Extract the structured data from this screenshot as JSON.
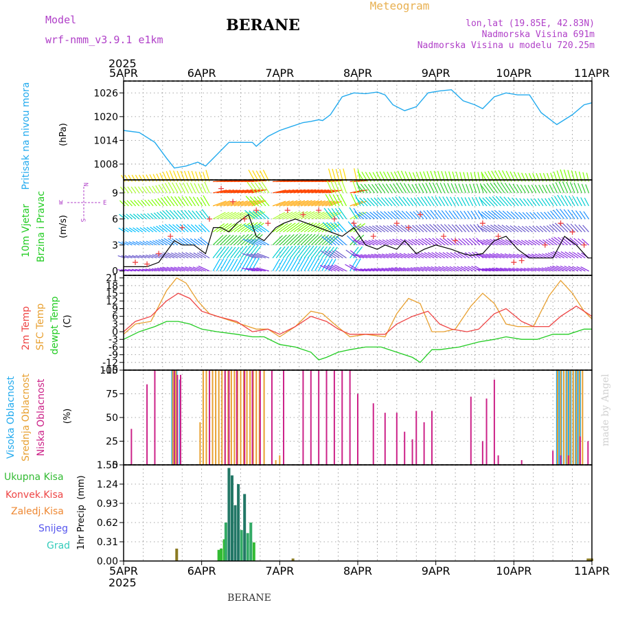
{
  "header": {
    "model_label": "Model",
    "model_name": "wrf-nmm_v3.9.1 e1km",
    "station": "BERANE",
    "product": "Meteogram",
    "coords": "lon,lat (19.85E, 42.83N)",
    "elevation": "Nadmorska Visina 691m",
    "model_elevation": "Nadmorska Visina u modelu 720.25m",
    "year_top": "2025",
    "year_bottom": "2025",
    "footer_station": "BERANE",
    "credit": "made by Angel"
  },
  "colors": {
    "pressure": "#22aaee",
    "temp2m": "#ee4444",
    "sfc_temp": "#e8a030",
    "dewpt": "#22cc22",
    "wind_speed": "#000000",
    "gust_marker": "#ee4444",
    "high_cloud": "#22aaee",
    "mid_cloud": "#e8a030",
    "low_cloud": "#cc2288",
    "total_precip": "#33bb33",
    "conv_precip": "#ee4444",
    "freezing_precip": "#ee8833",
    "snow": "#5555ee",
    "graupel": "#33ccbb",
    "label_purple": "#b040c8"
  },
  "x_axis": {
    "ticks": [
      "5APR",
      "6APR",
      "7APR",
      "8APR",
      "9APR",
      "10APR",
      "11APR"
    ]
  },
  "panels": {
    "pressure": {
      "ylabel": "Pritisak na nivou mora",
      "unit": "(hPa)"
    },
    "wind": {
      "ylabel_1": "10m Vjetar",
      "ylabel_2": "Brzina i Pravac",
      "unit": "(m/s)",
      "compass": {
        "n": "N",
        "s": "S",
        "w": "W",
        "e": "E"
      }
    },
    "temperature": {
      "label_2m": "2m Temp",
      "label_sfc": "SFC Temp",
      "label_dew": "dewpt Temp",
      "unit": "(C)"
    },
    "clouds": {
      "label_high": "Visoka Oblacnost",
      "label_mid": "Srednja Oblacnost",
      "label_low": "Niska Oblacnost",
      "unit": "(%)"
    },
    "precip": {
      "ylabel": "1hr Precip",
      "unit": "(mm)",
      "legend": [
        "Ukupna Kisa",
        "Konvek.Kisa",
        "Zaledj.Kisa",
        "Snijeg",
        "Grad"
      ]
    }
  },
  "chart_data": [
    {
      "type": "line",
      "name": "pressure",
      "x_unit": "days since 5APR 00UTC",
      "ylim": [
        1004,
        1029
      ],
      "yticks": [
        1008,
        1014,
        1020,
        1026
      ],
      "grid": true,
      "series": [
        {
          "name": "Pritisak na nivou mora",
          "x": [
            0,
            0.2,
            0.4,
            0.55,
            0.65,
            0.8,
            0.95,
            1.05,
            1.2,
            1.35,
            1.5,
            1.65,
            1.7,
            1.85,
            2.0,
            2.15,
            2.3,
            2.4,
            2.5,
            2.55,
            2.65,
            2.8,
            2.95,
            3.1,
            3.25,
            3.35,
            3.45,
            3.6,
            3.75,
            3.9,
            4.05,
            4.2,
            4.35,
            4.5,
            4.6,
            4.75,
            4.9,
            5.05,
            5.2,
            5.35,
            5.55,
            5.75,
            5.9,
            6.0
          ],
          "y": [
            1016.5,
            1016,
            1013.5,
            1009.5,
            1007,
            1007.5,
            1008.5,
            1007.5,
            1010.5,
            1013.5,
            1013.5,
            1013.5,
            1012.5,
            1015,
            1016.5,
            1017.5,
            1018.5,
            1018.8,
            1019.2,
            1019,
            1020.5,
            1025,
            1026,
            1025.8,
            1026.2,
            1025.5,
            1023,
            1021.5,
            1022.5,
            1026,
            1026.5,
            1026.8,
            1024,
            1023,
            1022,
            1025,
            1026,
            1025.5,
            1025.5,
            1021,
            1018,
            1020.5,
            1023,
            1023.5
          ]
        }
      ]
    },
    {
      "type": "line",
      "name": "wind",
      "x_unit": "days since 5APR 00UTC",
      "ylim": [
        -0.5,
        10.5
      ],
      "yticks": [
        0,
        3,
        6,
        9
      ],
      "grid": true,
      "series": [
        {
          "name": "speed",
          "x": [
            0,
            0.3,
            0.45,
            0.65,
            0.75,
            0.9,
            1.05,
            1.15,
            1.25,
            1.35,
            1.45,
            1.6,
            1.7,
            1.8,
            1.95,
            2.05,
            2.2,
            2.35,
            2.5,
            2.65,
            2.8,
            2.95,
            3.1,
            3.25,
            3.35,
            3.5,
            3.6,
            3.75,
            3.85,
            4.0,
            4.2,
            4.35,
            4.45,
            4.6,
            4.75,
            4.9,
            5.05,
            5.2,
            5.35,
            5.5,
            5.65,
            5.8,
            5.95,
            6.0
          ],
          "y": [
            0.5,
            0.5,
            1,
            3.5,
            3,
            3,
            2,
            5,
            5,
            4.5,
            5.5,
            6.5,
            4,
            3.5,
            5,
            5.5,
            6,
            5.5,
            5,
            4.5,
            4,
            5,
            3,
            2.5,
            3,
            2.5,
            3.5,
            2,
            2.5,
            3,
            2.5,
            2,
            1.8,
            2,
            3.5,
            4,
            2.5,
            1.5,
            1.5,
            1.5,
            4,
            3,
            1.5,
            1.5
          ]
        },
        {
          "name": "gust",
          "x": [
            0.15,
            0.3,
            0.45,
            0.6,
            0.75,
            1.1,
            1.25,
            1.4,
            1.55,
            1.7,
            1.85,
            2.1,
            2.3,
            2.5,
            2.7,
            2.95,
            3.2,
            3.5,
            3.65,
            3.8,
            4.1,
            4.25,
            4.6,
            4.8,
            5.0,
            5.1,
            5.4,
            5.6,
            5.75,
            5.9
          ],
          "y": [
            1,
            0.8,
            2,
            4,
            5,
            6,
            9.5,
            8,
            6,
            7,
            5.5,
            7,
            6.5,
            7,
            6,
            5.5,
            4,
            5.5,
            5,
            6.5,
            4,
            3.5,
            5.5,
            4,
            1,
            1.2,
            3,
            5.5,
            4.5,
            3
          ]
        }
      ]
    },
    {
      "type": "line",
      "name": "temperature",
      "x_unit": "days since 5APR 00UTC",
      "ylim": [
        -15,
        22
      ],
      "yticks": [
        21,
        18,
        15,
        12,
        9,
        6,
        3,
        0,
        -3,
        -6,
        -9,
        -12,
        -15
      ],
      "grid": true,
      "series": [
        {
          "name": "2m Temp",
          "x": [
            0,
            0.15,
            0.35,
            0.55,
            0.7,
            0.85,
            1.0,
            1.2,
            1.45,
            1.65,
            1.85,
            2.0,
            2.2,
            2.4,
            2.6,
            2.75,
            2.9,
            3.1,
            3.35,
            3.5,
            3.7,
            3.9,
            4.05,
            4.2,
            4.4,
            4.55,
            4.75,
            4.9,
            5.1,
            5.25,
            5.45,
            5.6,
            5.8,
            6.0
          ],
          "y": [
            0,
            4,
            6,
            12,
            15,
            13,
            8,
            6,
            4,
            0,
            1,
            -1,
            2,
            6,
            4,
            1,
            -1,
            -1,
            -1,
            3,
            6,
            8,
            3,
            1,
            0,
            1,
            7,
            9,
            4,
            2,
            2,
            6,
            10,
            6
          ]
        },
        {
          "name": "SFC Temp",
          "x": [
            0,
            0.15,
            0.35,
            0.55,
            0.68,
            0.8,
            0.95,
            1.1,
            1.3,
            1.5,
            1.7,
            1.85,
            2.0,
            2.2,
            2.4,
            2.55,
            2.7,
            2.9,
            3.1,
            3.35,
            3.5,
            3.65,
            3.8,
            3.95,
            4.1,
            4.25,
            4.45,
            4.6,
            4.75,
            4.9,
            5.05,
            5.25,
            5.45,
            5.6,
            5.75,
            5.9,
            6.0
          ],
          "y": [
            -1,
            3,
            4,
            16,
            21,
            19,
            12,
            7,
            5,
            3,
            1,
            1,
            -2,
            2,
            8,
            7,
            3,
            -2,
            -1,
            -2,
            7,
            13,
            11,
            0,
            0,
            1,
            10,
            15,
            11,
            3,
            2,
            2,
            14,
            20,
            15,
            8,
            5
          ]
        },
        {
          "name": "dewpt Temp",
          "x": [
            0,
            0.2,
            0.4,
            0.55,
            0.7,
            0.85,
            1.0,
            1.2,
            1.45,
            1.65,
            1.8,
            2.0,
            2.2,
            2.4,
            2.5,
            2.6,
            2.75,
            2.9,
            3.1,
            3.3,
            3.5,
            3.7,
            3.8,
            3.95,
            4.05,
            4.3,
            4.55,
            4.75,
            4.9,
            5.1,
            5.3,
            5.5,
            5.7,
            5.9,
            6.0
          ],
          "y": [
            -3,
            0,
            2,
            4,
            4,
            3,
            1,
            0,
            -1,
            -2,
            -2,
            -5,
            -6,
            -8,
            -11,
            -10,
            -8,
            -7,
            -6,
            -6,
            -8,
            -10,
            -12,
            -7,
            -7,
            -6,
            -4,
            -3,
            -2,
            -3,
            -3,
            -1,
            -1,
            1,
            1
          ]
        }
      ]
    },
    {
      "type": "bar",
      "name": "clouds",
      "x_unit": "days since 5APR 00UTC",
      "ylim": [
        0,
        100
      ],
      "yticks": [
        0,
        25,
        50,
        75,
        100
      ],
      "grid": true,
      "series": [
        {
          "name": "Visoka Oblacnost",
          "x": [
            0.62,
            0.65,
            0.68,
            0.72,
            5.55,
            5.58,
            5.61,
            5.64,
            5.67,
            5.7,
            5.73,
            5.76,
            5.79,
            5.82,
            5.85
          ],
          "values": [
            100,
            100,
            100,
            90,
            100,
            100,
            100,
            100,
            100,
            100,
            100,
            100,
            100,
            100,
            100
          ]
        },
        {
          "name": "Srednja Oblacnost",
          "x": [
            0.63,
            0.67,
            0.98,
            1.02,
            1.06,
            1.1,
            1.14,
            1.18,
            1.22,
            1.26,
            1.3,
            1.34,
            1.38,
            1.42,
            1.46,
            1.5,
            1.54,
            1.58,
            1.62,
            1.66,
            1.7,
            1.74,
            1.8,
            1.95,
            2.0,
            5.56,
            5.6,
            5.64,
            5.68,
            5.72,
            5.76,
            5.8,
            5.84,
            5.88
          ],
          "values": [
            100,
            100,
            45,
            100,
            100,
            100,
            100,
            100,
            100,
            100,
            100,
            100,
            100,
            100,
            100,
            100,
            100,
            100,
            100,
            100,
            100,
            100,
            100,
            5,
            10,
            100,
            100,
            100,
            100,
            100,
            100,
            100,
            100,
            100
          ]
        },
        {
          "name": "Niska Oblacnost",
          "x": [
            0.1,
            0.3,
            0.4,
            0.65,
            0.69,
            0.73,
            1.1,
            1.3,
            1.35,
            1.45,
            1.55,
            1.65,
            1.75,
            1.9,
            2.05,
            2.3,
            2.4,
            2.5,
            2.6,
            2.7,
            2.8,
            2.9,
            3.0,
            3.2,
            3.35,
            3.5,
            3.6,
            3.7,
            3.75,
            3.85,
            3.95,
            4.45,
            4.6,
            4.65,
            4.75,
            4.8,
            5.1,
            5.5,
            5.6,
            5.7,
            5.85,
            5.95
          ],
          "values": [
            38,
            85,
            100,
            100,
            95,
            95,
            100,
            100,
            100,
            100,
            100,
            100,
            100,
            100,
            100,
            100,
            100,
            100,
            100,
            100,
            100,
            100,
            75,
            65,
            55,
            55,
            35,
            27,
            57,
            45,
            57,
            72,
            25,
            70,
            90,
            10,
            5,
            15,
            10,
            10,
            30,
            25
          ]
        }
      ]
    },
    {
      "type": "bar",
      "name": "precip",
      "x_unit": "days since 5APR 00UTC",
      "ylim": [
        0,
        1.55
      ],
      "yticks": [
        0,
        0.31,
        0.62,
        0.93,
        1.24,
        1.55
      ],
      "grid": true,
      "series": [
        {
          "name": "Ukupna Kisa",
          "x": [
            0.68,
            1.22,
            1.25,
            1.29,
            1.31,
            1.35,
            1.39,
            1.43,
            1.47,
            1.51,
            1.55,
            1.59,
            1.63,
            1.67,
            2.17,
            5.95,
            5.98,
            6.0
          ],
          "values": [
            0.2,
            0.18,
            0.2,
            0.35,
            0.62,
            1.5,
            1.38,
            0.9,
            1.24,
            0.5,
            1.08,
            0.45,
            0.62,
            0.3,
            0.04,
            0.04,
            0.04,
            0.04
          ]
        }
      ]
    }
  ]
}
